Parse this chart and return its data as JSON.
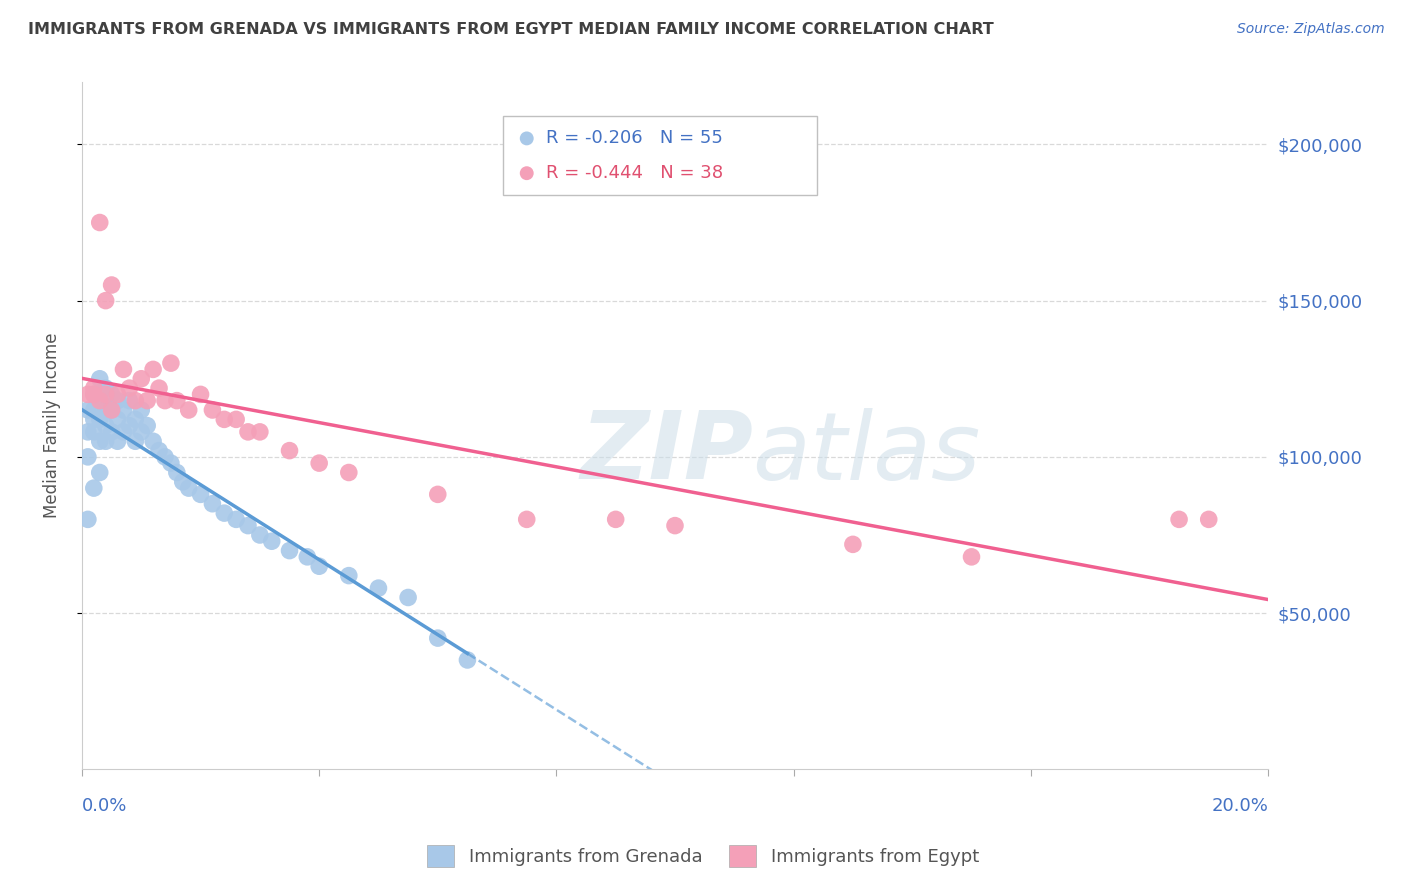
{
  "title": "IMMIGRANTS FROM GRENADA VS IMMIGRANTS FROM EGYPT MEDIAN FAMILY INCOME CORRELATION CHART",
  "source": "Source: ZipAtlas.com",
  "ylabel": "Median Family Income",
  "legend1_label": "Immigrants from Grenada",
  "legend2_label": "Immigrants from Egypt",
  "R1": "-0.206",
  "N1": "55",
  "R2": "-0.444",
  "N2": "38",
  "xlim": [
    0.0,
    0.2
  ],
  "ylim": [
    0,
    220000
  ],
  "yticks": [
    50000,
    100000,
    150000,
    200000
  ],
  "ytick_labels": [
    "$50,000",
    "$100,000",
    "$150,000",
    "$200,000"
  ],
  "color_grenada": "#a8c8e8",
  "color_egypt": "#f4a0b8",
  "color_grenada_line": "#5b9bd5",
  "color_egypt_line": "#f06090",
  "background_color": "#ffffff",
  "grid_color": "#d0d0d0",
  "grenada_x": [
    0.001,
    0.001,
    0.001,
    0.001,
    0.002,
    0.002,
    0.002,
    0.002,
    0.002,
    0.003,
    0.003,
    0.003,
    0.003,
    0.003,
    0.004,
    0.004,
    0.004,
    0.004,
    0.005,
    0.005,
    0.005,
    0.006,
    0.006,
    0.006,
    0.007,
    0.007,
    0.008,
    0.008,
    0.009,
    0.009,
    0.01,
    0.01,
    0.011,
    0.012,
    0.013,
    0.014,
    0.015,
    0.016,
    0.017,
    0.018,
    0.02,
    0.022,
    0.024,
    0.026,
    0.028,
    0.03,
    0.032,
    0.035,
    0.038,
    0.04,
    0.045,
    0.05,
    0.055,
    0.06,
    0.065
  ],
  "grenada_y": [
    115000,
    108000,
    100000,
    80000,
    120000,
    115000,
    112000,
    108000,
    90000,
    125000,
    118000,
    112000,
    105000,
    95000,
    122000,
    115000,
    110000,
    105000,
    120000,
    115000,
    108000,
    118000,
    112000,
    105000,
    115000,
    108000,
    118000,
    110000,
    112000,
    105000,
    115000,
    108000,
    110000,
    105000,
    102000,
    100000,
    98000,
    95000,
    92000,
    90000,
    88000,
    85000,
    82000,
    80000,
    78000,
    75000,
    73000,
    70000,
    68000,
    65000,
    62000,
    58000,
    55000,
    42000,
    35000
  ],
  "egypt_x": [
    0.001,
    0.002,
    0.003,
    0.003,
    0.004,
    0.005,
    0.005,
    0.006,
    0.007,
    0.008,
    0.009,
    0.01,
    0.011,
    0.012,
    0.013,
    0.014,
    0.015,
    0.016,
    0.018,
    0.02,
    0.022,
    0.024,
    0.026,
    0.028,
    0.03,
    0.035,
    0.04,
    0.045,
    0.06,
    0.075,
    0.09,
    0.1,
    0.13,
    0.15,
    0.185,
    0.19,
    0.002,
    0.004
  ],
  "egypt_y": [
    120000,
    120000,
    175000,
    118000,
    150000,
    155000,
    115000,
    120000,
    128000,
    122000,
    118000,
    125000,
    118000,
    128000,
    122000,
    118000,
    130000,
    118000,
    115000,
    120000,
    115000,
    112000,
    112000,
    108000,
    108000,
    102000,
    98000,
    95000,
    88000,
    80000,
    80000,
    78000,
    72000,
    68000,
    80000,
    80000,
    122000,
    120000
  ]
}
